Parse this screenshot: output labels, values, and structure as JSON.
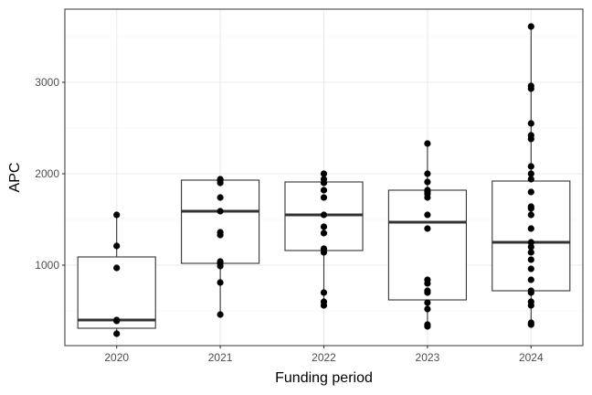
{
  "chart_data": {
    "type": "box",
    "title": "",
    "xlabel": "Funding period",
    "ylabel": "APC",
    "categories": [
      "2020",
      "2021",
      "2022",
      "2023",
      "2024"
    ],
    "yticks": [
      1000,
      2000,
      3000
    ],
    "ylim": [
      120,
      3800
    ],
    "grid": true,
    "colors": {
      "box_stroke": "#333333",
      "median": "#333333",
      "point": "#000000",
      "grid_major": "#ebebeb",
      "grid_minor": "#f5f5f5",
      "panel_border": "#333333"
    },
    "boxes": [
      {
        "category": "2020",
        "q1": 310,
        "median": 400,
        "q3": 1090,
        "whisker_low": 250,
        "whisker_high": 1550
      },
      {
        "category": "2021",
        "q1": 1020,
        "median": 1590,
        "q3": 1930,
        "whisker_low": 460,
        "whisker_high": 1940
      },
      {
        "category": "2022",
        "q1": 1160,
        "median": 1550,
        "q3": 1910,
        "whisker_low": 560,
        "whisker_high": 2000
      },
      {
        "category": "2023",
        "q1": 620,
        "median": 1470,
        "q3": 1820,
        "whisker_low": 330,
        "whisker_high": 2330
      },
      {
        "category": "2024",
        "q1": 720,
        "median": 1250,
        "q3": 1920,
        "whisker_low": 350,
        "whisker_high": 3610
      }
    ],
    "points": [
      {
        "category": "2020",
        "values": [
          250,
          390,
          400,
          970,
          1210,
          1550
        ]
      },
      {
        "category": "2021",
        "values": [
          460,
          810,
          990,
          1020,
          1040,
          1330,
          1360,
          1590,
          1740,
          1900,
          1930,
          1940
        ]
      },
      {
        "category": "2022",
        "values": [
          560,
          600,
          700,
          1140,
          1180,
          1350,
          1420,
          1550,
          1740,
          1820,
          1900,
          1940,
          2000
        ]
      },
      {
        "category": "2023",
        "values": [
          330,
          350,
          520,
          590,
          700,
          720,
          800,
          840,
          1400,
          1550,
          1740,
          1780,
          1800,
          1820,
          1910,
          2000,
          2330
        ]
      },
      {
        "category": "2024",
        "values": [
          350,
          370,
          560,
          600,
          700,
          720,
          840,
          960,
          1060,
          1140,
          1200,
          1250,
          1400,
          1550,
          1620,
          1640,
          1800,
          1940,
          2000,
          2080,
          2380,
          2420,
          2550,
          2930,
          2960,
          3610
        ]
      }
    ]
  }
}
